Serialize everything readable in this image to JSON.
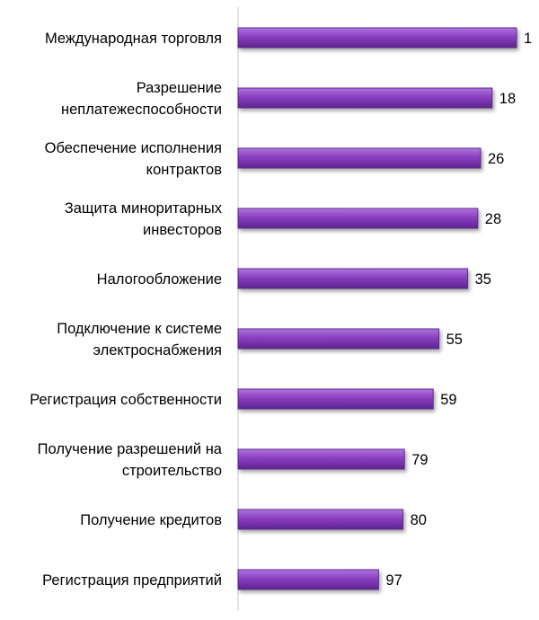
{
  "chart_data": {
    "type": "bar",
    "orientation": "horizontal",
    "title": "",
    "xlabel": "",
    "ylabel": "",
    "categories": [
      "Международная торговля",
      "Разрешение неплатежеспособности",
      "Обеспечение исполнения контрактов",
      "Защита миноритарных инвесторов",
      "Налогообложение",
      "Подключение к системе электроснабжения",
      "Регистрация собственности",
      "Получение разрешений на строительство",
      "Получение кредитов",
      "Регистрация предприятий"
    ],
    "category_label_lines": [
      [
        "Международная торговля"
      ],
      [
        "Разрешение",
        "неплатежеспособности"
      ],
      [
        "Обеспечение исполнения",
        "контрактов"
      ],
      [
        "Защита миноритарных",
        "инвесторов"
      ],
      [
        "Налогообложение"
      ],
      [
        "Подключение к системе",
        "электроснабжения"
      ],
      [
        "Регистрация собственности"
      ],
      [
        "Получение разрешений  на",
        "строительство"
      ],
      [
        "Получение кредитов"
      ],
      [
        "Регистрация предприятий"
      ]
    ],
    "values": [
      1,
      18,
      26,
      28,
      35,
      55,
      59,
      79,
      80,
      97
    ],
    "value_labels": [
      "1",
      "18",
      "26",
      "28",
      "35",
      "55",
      "59",
      "79",
      "80",
      "97"
    ],
    "value_scale": "reversed rank: rank 1 shown as longest bar",
    "xlim": [
      0,
      190
    ],
    "grid": false,
    "legend": "none",
    "bar_color": "#8a3fc0",
    "bar_color_dark": "#5a2a88"
  }
}
